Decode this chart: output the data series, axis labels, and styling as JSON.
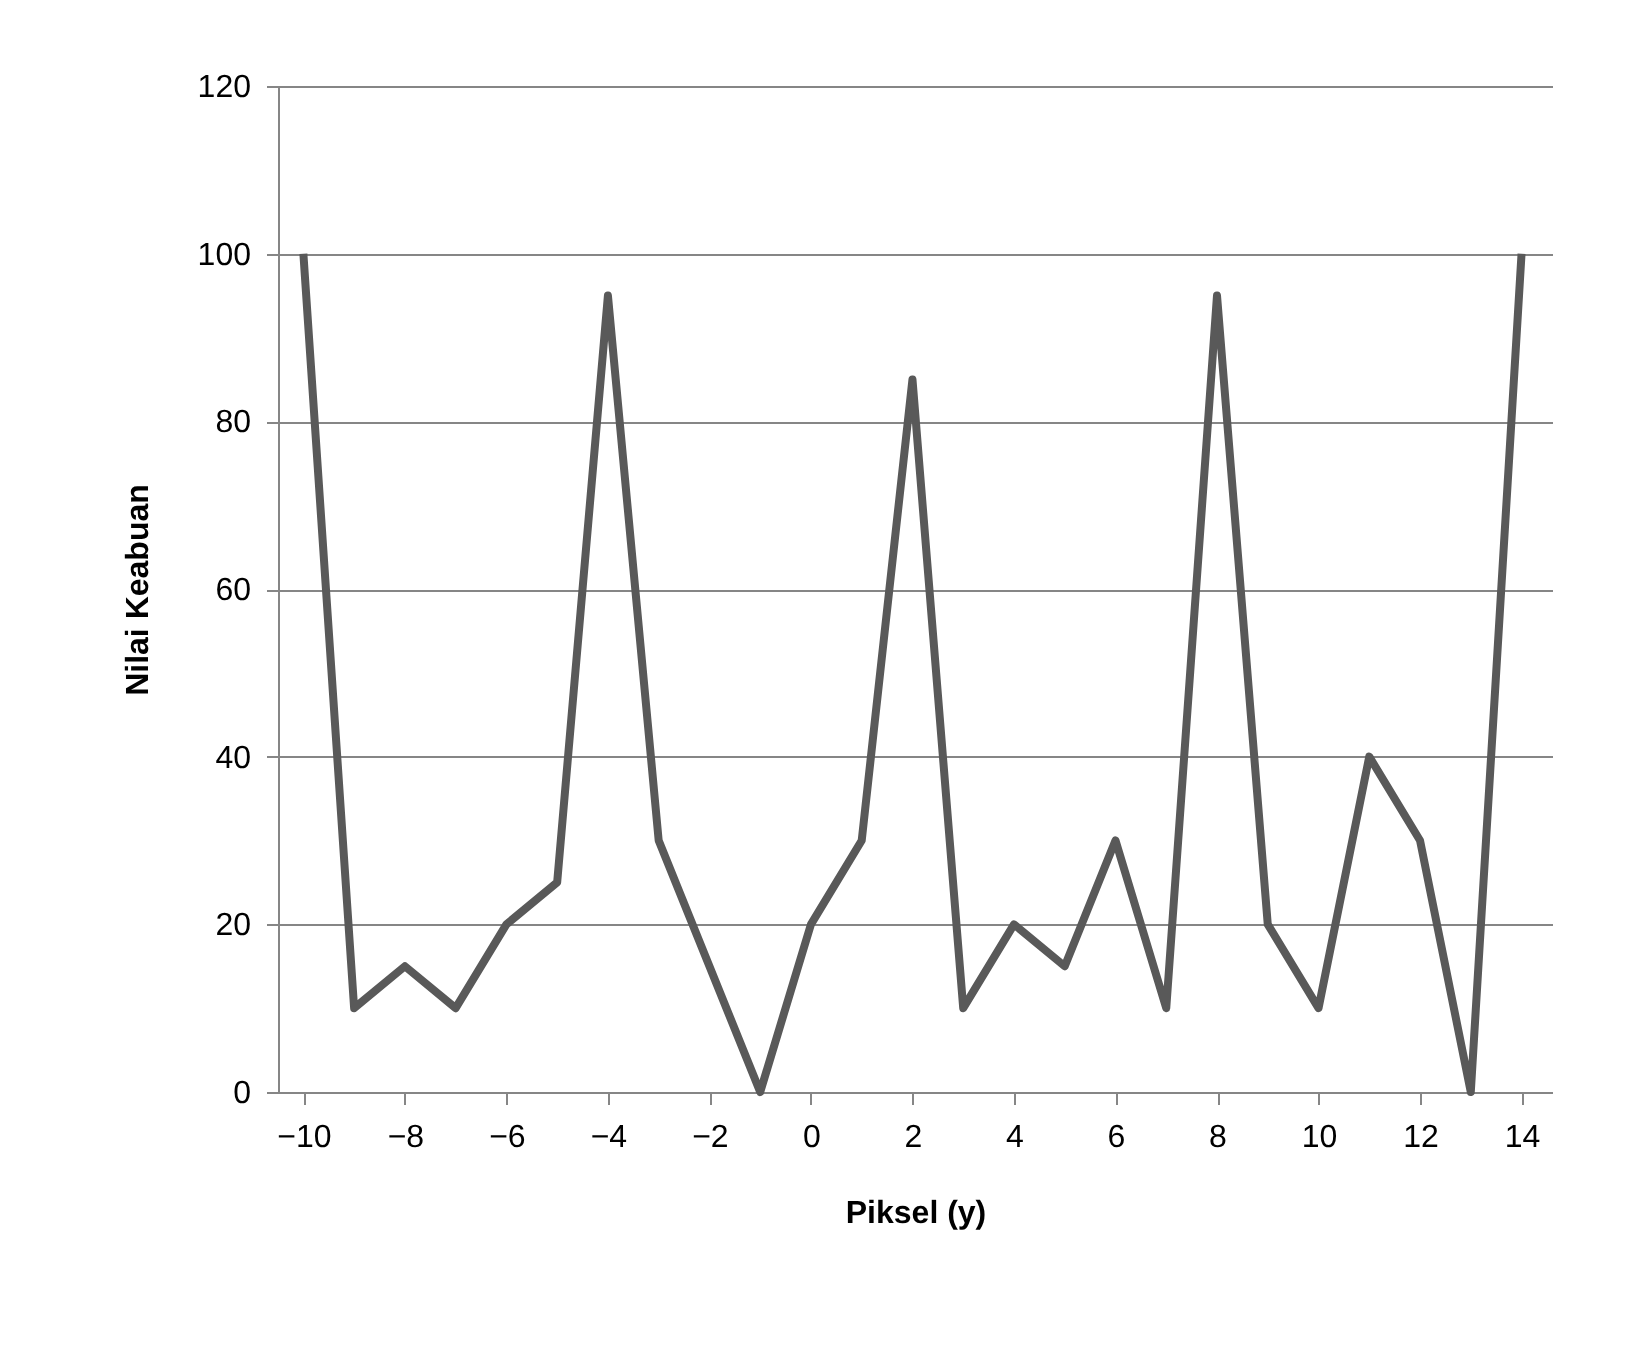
{
  "chart_data": {
    "type": "line",
    "xlabel": "Piksel (y)",
    "ylabel": "Nilai Keabuan",
    "x": [
      -10,
      -9,
      -8,
      -7,
      -6,
      -5,
      -4,
      -3,
      -2,
      -1,
      0,
      1,
      2,
      3,
      4,
      5,
      6,
      7,
      8,
      9,
      10,
      11,
      12,
      13,
      14
    ],
    "series": [
      {
        "color": "#595959",
        "values": [
          100,
          10,
          15,
          10,
          20,
          25,
          95,
          30,
          15,
          0,
          20,
          30,
          85,
          10,
          20,
          15,
          30,
          10,
          95,
          20,
          10,
          40,
          30,
          0,
          100
        ]
      }
    ],
    "xlim": [
      -10.5,
      14.6
    ],
    "xticks": [
      -10,
      -8,
      -6,
      -4,
      -2,
      0,
      2,
      4,
      6,
      8,
      10,
      12,
      14
    ],
    "ylim": [
      0,
      120
    ],
    "yticks": [
      0,
      20,
      40,
      60,
      80,
      100,
      120
    ],
    "grid": "y",
    "legend": false,
    "marker": "none",
    "line_style": "solid"
  }
}
